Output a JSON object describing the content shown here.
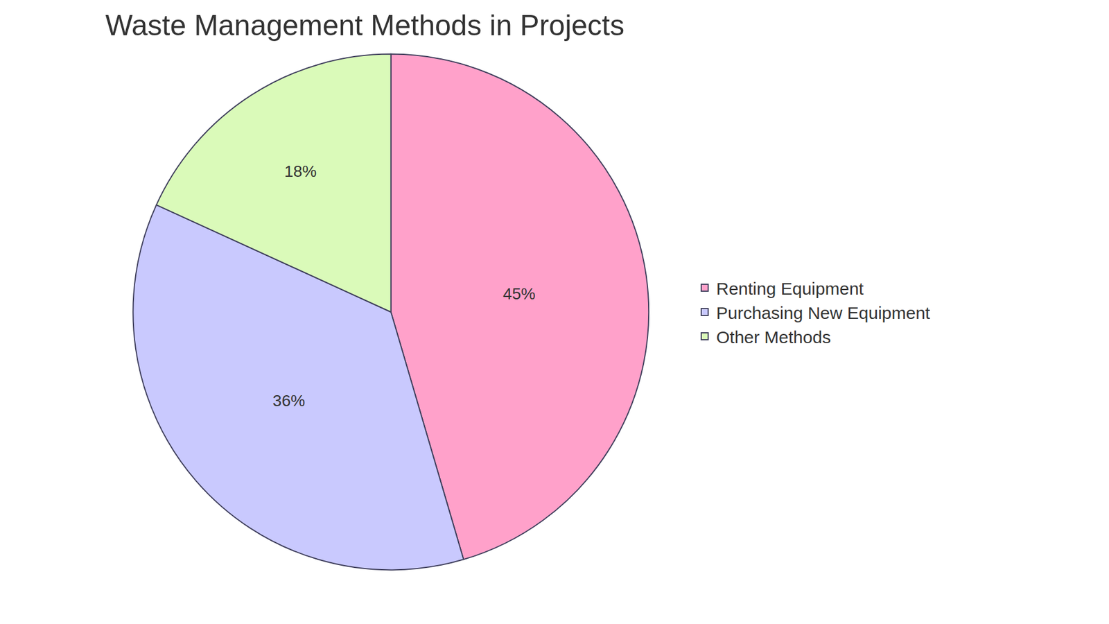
{
  "chart_data": {
    "type": "pie",
    "title": "Waste Management Methods in Projects",
    "categories": [
      "Renting Equipment",
      "Purchasing New Equipment",
      "Other Methods"
    ],
    "values": [
      45,
      36,
      18
    ],
    "value_labels": [
      "45%",
      "36%",
      "18%"
    ],
    "colors": [
      "#ffa1ca",
      "#c9c9fe",
      "#dafab9"
    ],
    "legend": "right",
    "data_labels": true
  }
}
